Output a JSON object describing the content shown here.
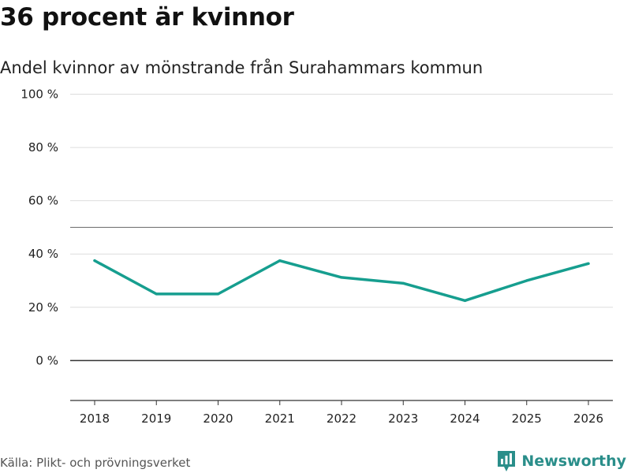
{
  "header": {
    "title": "36 procent är kvinnor",
    "subtitle": "Andel kvinnor av mönstrande från Surahammars kommun"
  },
  "footer": {
    "source": "Källa: Plikt- och prövningsverket",
    "brand": "Newsworthy"
  },
  "colors": {
    "line": "#169e8f",
    "grid": "#dddddd",
    "reference": "#777777",
    "zero": "#333333",
    "brand": "#2a8e8a"
  },
  "chart_data": {
    "type": "line",
    "title": "36 procent är kvinnor",
    "subtitle": "Andel kvinnor av mönstrande från Surahammars kommun",
    "xlabel": "",
    "ylabel": "",
    "ylim": [
      -15,
      100
    ],
    "y_ticks": [
      0,
      20,
      40,
      60,
      80,
      100
    ],
    "y_tick_labels": [
      "0 %",
      "20 %",
      "40 %",
      "60 %",
      "80 %",
      "100 %"
    ],
    "reference_line": 50,
    "categories": [
      "2018",
      "2019",
      "2020",
      "2021",
      "2022",
      "2023",
      "2024",
      "2025",
      "2026"
    ],
    "series": [
      {
        "name": "Andel kvinnor",
        "values": [
          37.5,
          25,
          25,
          37.5,
          31.2,
          29,
          22.5,
          30,
          36.4
        ]
      }
    ],
    "grid": true,
    "legend": "none"
  }
}
